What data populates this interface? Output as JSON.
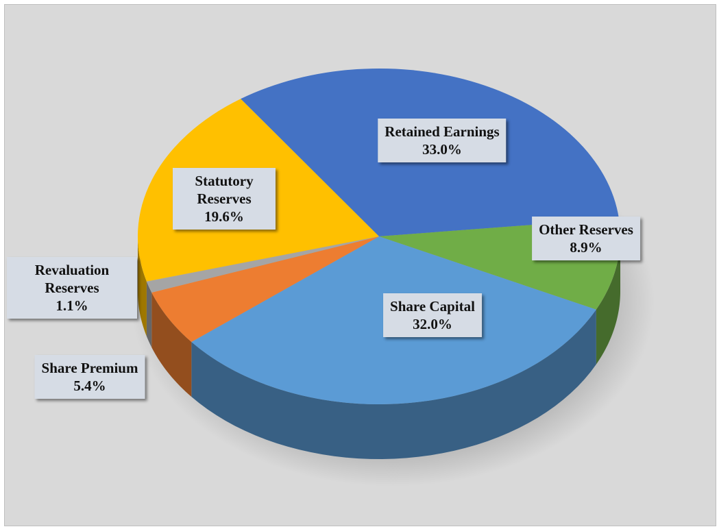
{
  "chart_data": {
    "type": "pie",
    "categories": [
      "Retained Earnings",
      "Other Reserves",
      "Share Capital",
      "Share Premium",
      "Revaluation Reserves",
      "Statutory Reserves"
    ],
    "values": [
      33.0,
      8.9,
      32.0,
      5.4,
      1.1,
      19.6
    ],
    "value_labels": [
      "33.0%",
      "8.9%",
      "32.0%",
      "5.4%",
      "1.1%",
      "19.6%"
    ],
    "colors": [
      "#4472c4",
      "#70ad47",
      "#5b9bd5",
      "#ed7d31",
      "#a5a5a5",
      "#ffc000"
    ]
  }
}
